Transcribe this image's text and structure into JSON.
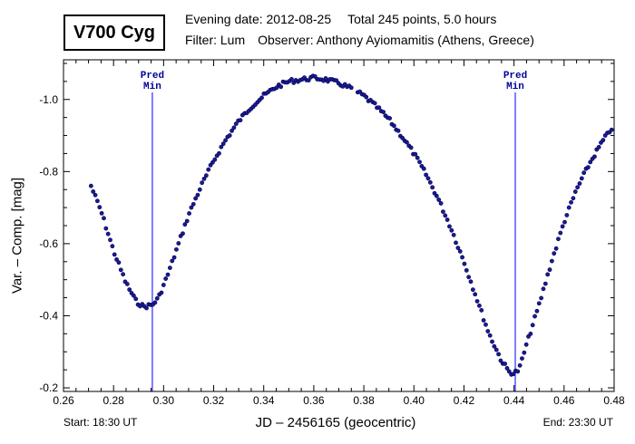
{
  "header": {
    "star_name": "V700 Cyg",
    "evening_date": "Evening date: 2012-08-25",
    "total": "Total 245 points, 5.0 hours",
    "filter": "Filter: Lum",
    "observer": "Observer: Anthony Ayiomamitis (Athens, Greece)"
  },
  "footer": {
    "start": "Start: 18:30 UT",
    "end": "End: 23:30 UT"
  },
  "colors": {
    "points": "#1a1a99",
    "minima_lines": "#0000ff",
    "axis": "#000000"
  },
  "chart_data": {
    "type": "scatter",
    "xlabel": "JD – 2456165  (geocentric)",
    "ylabel": "Var. – Comp. [mag]",
    "xlim": [
      0.26,
      0.48
    ],
    "ylim": [
      -0.19,
      -1.11
    ],
    "y_inverted": true,
    "x_ticks": [
      0.26,
      0.28,
      0.3,
      0.32,
      0.34,
      0.36,
      0.38,
      0.4,
      0.42,
      0.44,
      0.46,
      0.48
    ],
    "x_tick_labels": [
      "0.26",
      "0.28",
      "0.30",
      "0.32",
      "0.34",
      "0.36",
      "0.38",
      "0.40",
      "0.42",
      "0.44",
      "0.46",
      "0.48"
    ],
    "y_ticks": [
      -0.2,
      -0.4,
      -0.6,
      -0.8,
      -1.0
    ],
    "y_tick_labels": [
      "-0.2",
      "-0.4",
      "-0.6",
      "-0.8",
      "-1.0"
    ],
    "predicted_minima": [
      {
        "x": 0.2955,
        "label_line1": "Pred",
        "label_line2": "Min"
      },
      {
        "x": 0.4405,
        "label_line1": "Pred",
        "label_line2": "Min"
      }
    ],
    "lightcurve_anchors": [
      [
        0.271,
        -0.76
      ],
      [
        0.275,
        -0.69
      ],
      [
        0.28,
        -0.58
      ],
      [
        0.285,
        -0.49
      ],
      [
        0.289,
        -0.44
      ],
      [
        0.292,
        -0.425
      ],
      [
        0.2955,
        -0.43
      ],
      [
        0.298,
        -0.45
      ],
      [
        0.302,
        -0.52
      ],
      [
        0.306,
        -0.6
      ],
      [
        0.31,
        -0.68
      ],
      [
        0.315,
        -0.76
      ],
      [
        0.32,
        -0.83
      ],
      [
        0.325,
        -0.89
      ],
      [
        0.33,
        -0.94
      ],
      [
        0.335,
        -0.98
      ],
      [
        0.34,
        -1.01
      ],
      [
        0.345,
        -1.035
      ],
      [
        0.35,
        -1.05
      ],
      [
        0.355,
        -1.055
      ],
      [
        0.36,
        -1.06
      ],
      [
        0.365,
        -1.055
      ],
      [
        0.37,
        -1.045
      ],
      [
        0.375,
        -1.03
      ],
      [
        0.38,
        -1.01
      ],
      [
        0.385,
        -0.98
      ],
      [
        0.39,
        -0.945
      ],
      [
        0.395,
        -0.9
      ],
      [
        0.4,
        -0.85
      ],
      [
        0.405,
        -0.79
      ],
      [
        0.41,
        -0.72
      ],
      [
        0.415,
        -0.64
      ],
      [
        0.42,
        -0.55
      ],
      [
        0.425,
        -0.45
      ],
      [
        0.43,
        -0.35
      ],
      [
        0.435,
        -0.275
      ],
      [
        0.438,
        -0.245
      ],
      [
        0.44,
        -0.24
      ],
      [
        0.442,
        -0.25
      ],
      [
        0.445,
        -0.32
      ],
      [
        0.45,
        -0.43
      ],
      [
        0.455,
        -0.55
      ],
      [
        0.46,
        -0.66
      ],
      [
        0.465,
        -0.75
      ],
      [
        0.47,
        -0.82
      ],
      [
        0.475,
        -0.88
      ],
      [
        0.479,
        -0.92
      ]
    ],
    "point_count": 245,
    "gap_range": [
      0.3758,
      0.3775
    ]
  }
}
